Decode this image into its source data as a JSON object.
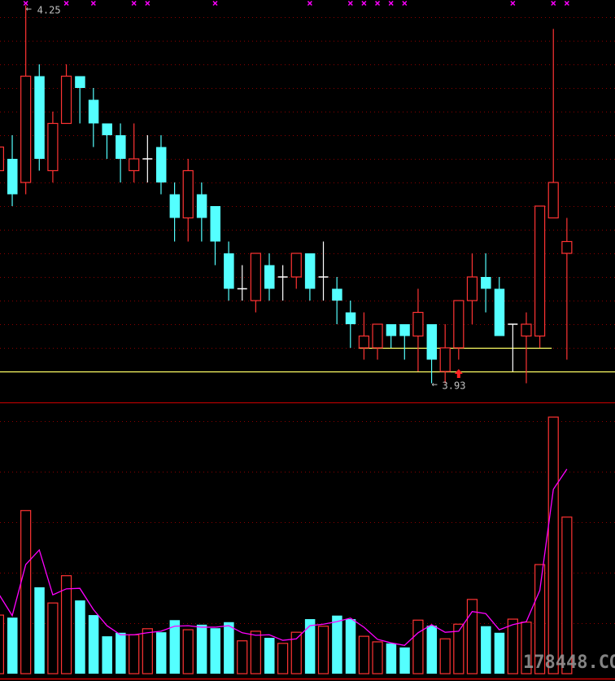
{
  "chart_data": [
    {
      "type": "candlestick",
      "panel": "price",
      "ylim": [
        3.93,
        4.25
      ],
      "grid": true,
      "grid_step": 0.02,
      "colors": {
        "up": "#ff3333",
        "down": "#54ffff",
        "flat": "#ffffff",
        "background": "#000000",
        "grid": "#8b0000",
        "support_line": "#ffff66",
        "marker": "#ff00ff"
      },
      "candles": [
        {
          "o": 4.11,
          "h": 4.13,
          "l": 4.11,
          "c": 4.13
        },
        {
          "o": 4.12,
          "h": 4.14,
          "l": 4.08,
          "c": 4.09
        },
        {
          "o": 4.1,
          "h": 4.25,
          "l": 4.09,
          "c": 4.19
        },
        {
          "o": 4.19,
          "h": 4.2,
          "l": 4.11,
          "c": 4.12
        },
        {
          "o": 4.11,
          "h": 4.16,
          "l": 4.1,
          "c": 4.15
        },
        {
          "o": 4.15,
          "h": 4.2,
          "l": 4.15,
          "c": 4.19
        },
        {
          "o": 4.19,
          "h": 4.19,
          "l": 4.15,
          "c": 4.18
        },
        {
          "o": 4.17,
          "h": 4.18,
          "l": 4.13,
          "c": 4.15
        },
        {
          "o": 4.15,
          "h": 4.15,
          "l": 4.12,
          "c": 4.14
        },
        {
          "o": 4.14,
          "h": 4.15,
          "l": 4.1,
          "c": 4.12
        },
        {
          "o": 4.11,
          "h": 4.15,
          "l": 4.1,
          "c": 4.12
        },
        {
          "o": 4.12,
          "h": 4.14,
          "l": 4.1,
          "c": 4.12
        },
        {
          "o": 4.13,
          "h": 4.14,
          "l": 4.09,
          "c": 4.1
        },
        {
          "o": 4.09,
          "h": 4.1,
          "l": 4.05,
          "c": 4.07
        },
        {
          "o": 4.07,
          "h": 4.12,
          "l": 4.05,
          "c": 4.11
        },
        {
          "o": 4.09,
          "h": 4.1,
          "l": 4.05,
          "c": 4.07
        },
        {
          "o": 4.08,
          "h": 4.08,
          "l": 4.03,
          "c": 4.05
        },
        {
          "o": 4.04,
          "h": 4.05,
          "l": 4.0,
          "c": 4.01
        },
        {
          "o": 4.01,
          "h": 4.03,
          "l": 4.0,
          "c": 4.01
        },
        {
          "o": 4.0,
          "h": 4.04,
          "l": 3.99,
          "c": 4.04
        },
        {
          "o": 4.03,
          "h": 4.04,
          "l": 4.0,
          "c": 4.01
        },
        {
          "o": 4.02,
          "h": 4.03,
          "l": 4.0,
          "c": 4.02
        },
        {
          "o": 4.02,
          "h": 4.04,
          "l": 4.01,
          "c": 4.04
        },
        {
          "o": 4.04,
          "h": 4.04,
          "l": 4.0,
          "c": 4.01
        },
        {
          "o": 4.02,
          "h": 4.05,
          "l": 4.0,
          "c": 4.02
        },
        {
          "o": 4.01,
          "h": 4.02,
          "l": 3.98,
          "c": 4.0
        },
        {
          "o": 3.99,
          "h": 4.0,
          "l": 3.96,
          "c": 3.98
        },
        {
          "o": 3.96,
          "h": 3.99,
          "l": 3.95,
          "c": 3.97
        },
        {
          "o": 3.96,
          "h": 3.98,
          "l": 3.95,
          "c": 3.98
        },
        {
          "o": 3.98,
          "h": 3.98,
          "l": 3.96,
          "c": 3.97
        },
        {
          "o": 3.98,
          "h": 3.98,
          "l": 3.95,
          "c": 3.97
        },
        {
          "o": 3.97,
          "h": 4.01,
          "l": 3.94,
          "c": 3.99
        },
        {
          "o": 3.98,
          "h": 3.98,
          "l": 3.93,
          "c": 3.95
        },
        {
          "o": 3.94,
          "h": 3.98,
          "l": 3.93,
          "c": 3.96
        },
        {
          "o": 3.96,
          "h": 4.0,
          "l": 3.95,
          "c": 4.0
        },
        {
          "o": 4.0,
          "h": 4.04,
          "l": 3.98,
          "c": 4.02
        },
        {
          "o": 4.02,
          "h": 4.04,
          "l": 3.99,
          "c": 4.01
        },
        {
          "o": 4.01,
          "h": 4.02,
          "l": 3.97,
          "c": 3.97
        },
        {
          "o": 3.98,
          "h": 3.98,
          "l": 3.94,
          "c": 3.98
        },
        {
          "o": 3.97,
          "h": 3.99,
          "l": 3.93,
          "c": 3.98
        },
        {
          "o": 3.97,
          "h": 4.08,
          "l": 3.96,
          "c": 4.08
        },
        {
          "o": 4.07,
          "h": 4.23,
          "l": 4.07,
          "c": 4.1
        },
        {
          "o": 4.04,
          "h": 4.07,
          "l": 3.95,
          "c": 4.05
        }
      ],
      "annotations": {
        "high_label": "4.25",
        "high_arrow": "←",
        "high_index": 2,
        "low_label": "3.93",
        "low_arrow": "←",
        "low_index": 32
      },
      "top_markers": [
        2,
        5,
        7,
        10,
        11,
        16,
        23,
        26,
        27,
        28,
        29,
        30,
        38,
        41,
        42
      ],
      "buy_arrow_index": 34,
      "horizontal_lines": [
        {
          "price": 3.96,
          "from_index": 27,
          "to_index": 41
        },
        {
          "price": 3.94,
          "from_index": 0,
          "to_index": 42
        }
      ]
    },
    {
      "type": "bar",
      "panel": "volume",
      "ylim": [
        0,
        5.2
      ],
      "grid": true,
      "grid_step": 1,
      "values": [
        1.16,
        1.11,
        3.23,
        1.71,
        1.4,
        1.94,
        1.45,
        1.16,
        0.74,
        0.81,
        0.77,
        0.89,
        0.82,
        1.06,
        0.87,
        0.97,
        0.9,
        1.02,
        0.65,
        0.84,
        0.71,
        0.6,
        0.82,
        1.08,
        0.94,
        1.15,
        1.08,
        0.74,
        0.63,
        0.6,
        0.52,
        1.06,
        0.95,
        0.69,
        0.98,
        1.47,
        0.94,
        0.81,
        1.08,
        1.02,
        2.16,
        5.08,
        3.1
      ],
      "ma_line": {
        "color": "#ff00ff",
        "values": [
          1.58,
          1.15,
          2.16,
          2.45,
          1.56,
          1.68,
          1.69,
          1.27,
          0.95,
          0.77,
          0.77,
          0.81,
          0.84,
          0.94,
          0.95,
          0.92,
          0.92,
          0.95,
          0.81,
          0.76,
          0.77,
          0.66,
          0.69,
          0.95,
          0.98,
          1.03,
          1.1,
          0.92,
          0.68,
          0.61,
          0.56,
          0.81,
          0.97,
          0.82,
          0.84,
          1.23,
          1.19,
          0.87,
          0.97,
          1.03,
          1.65,
          3.65,
          4.05
        ]
      }
    }
  ],
  "watermark": "178448.COM"
}
